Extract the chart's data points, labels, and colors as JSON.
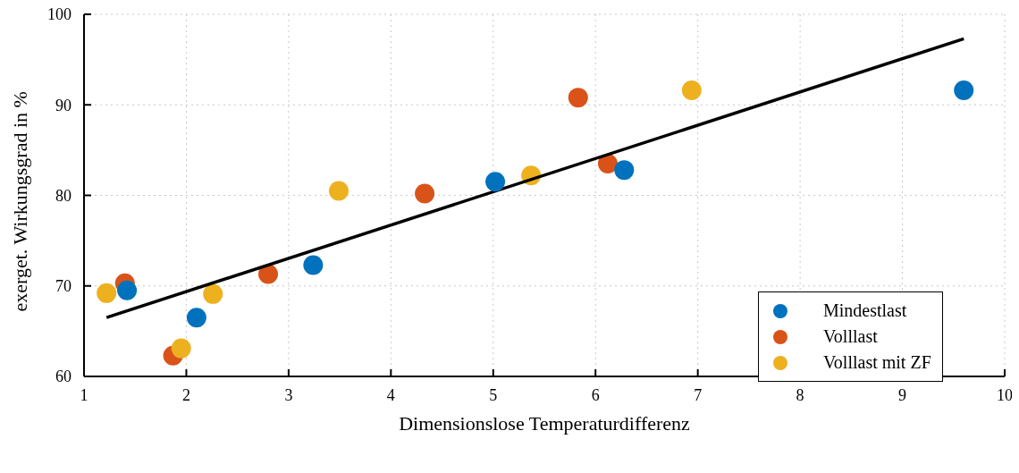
{
  "chart_data": {
    "type": "scatter",
    "xlabel": "Dimensionslose Temperaturdifferenz",
    "ylabel": "exerget. Wirkungsgrad in %",
    "xlim": [
      1,
      10
    ],
    "xticks": [
      1,
      2,
      3,
      4,
      5,
      6,
      7,
      8,
      9,
      10
    ],
    "ylim": [
      60,
      100
    ],
    "yticks": [
      60,
      70,
      80,
      90,
      100
    ],
    "grid": true,
    "legend": "bottom right",
    "marker": "circle",
    "series": [
      {
        "name": "Mindestlast",
        "color": "#0072bd",
        "x": [
          1.42,
          2.1,
          3.24,
          5.02,
          6.28,
          9.6
        ],
        "values": [
          69.5,
          66.5,
          72.3,
          81.5,
          82.8,
          91.6
        ]
      },
      {
        "name": "Volllast",
        "color": "#d95319",
        "x": [
          1.4,
          1.87,
          2.8,
          4.33,
          5.83,
          6.12
        ],
        "values": [
          70.3,
          62.3,
          71.3,
          80.2,
          90.8,
          83.5
        ]
      },
      {
        "name": "Volllast mit ZF",
        "color": "#edb120",
        "x": [
          1.22,
          1.95,
          2.26,
          3.49,
          5.37,
          6.94
        ],
        "values": [
          69.2,
          63.1,
          69.1,
          80.5,
          82.2,
          91.6
        ]
      },
      {
        "type": "line",
        "color": "#000000",
        "marker": "none",
        "line_style": "solid",
        "x": [
          1.22,
          9.6
        ],
        "values": [
          66.5,
          97.3
        ]
      }
    ]
  }
}
